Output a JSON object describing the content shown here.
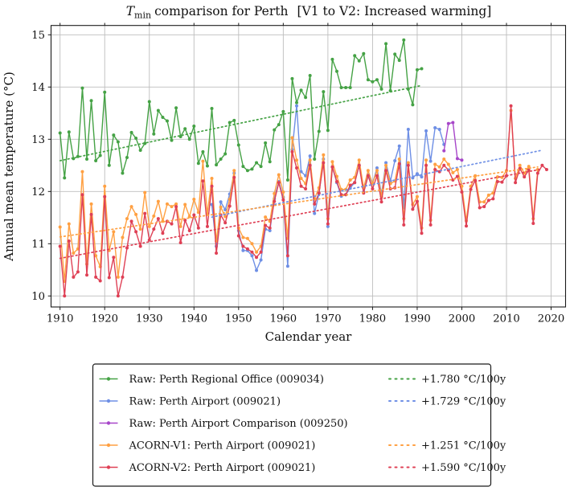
{
  "chart_data": {
    "type": "line",
    "title": "Tmin comparison for Perth  [V1 to V2: Increased warming]",
    "title_parts": {
      "math": "T",
      "sub": "min",
      "rest": "comparison for Perth",
      "bracket": "[V1 to V2: Increased warming]"
    },
    "xlabel": "Calendar year",
    "ylabel": "Annual mean temperature (°C)",
    "xlim": [
      1908,
      2023.3
    ],
    "ylim": [
      9.79,
      15.18
    ],
    "xticks": [
      1910,
      1920,
      1930,
      1940,
      1950,
      1960,
      1970,
      1980,
      1990,
      2000,
      2010,
      2020
    ],
    "yticks": [
      10,
      11,
      12,
      13,
      14,
      15
    ],
    "grid": true,
    "grid_color": "#bdbdbd",
    "legend_position": "below-center",
    "series": [
      {
        "name": "Raw: Perth Regional Office (009034)",
        "color": "#45a245",
        "start_year": 1910,
        "values": [
          13.12,
          12.26,
          13.14,
          12.63,
          12.67,
          13.98,
          12.62,
          13.74,
          12.59,
          12.69,
          13.9,
          12.5,
          13.08,
          12.95,
          12.35,
          12.65,
          13.13,
          13.02,
          12.79,
          12.92,
          13.72,
          13.1,
          13.55,
          13.42,
          13.35,
          12.98,
          13.6,
          13.05,
          13.2,
          13.0,
          13.25,
          12.54,
          12.76,
          12.49,
          13.59,
          12.51,
          12.62,
          12.72,
          13.32,
          13.36,
          12.89,
          12.48,
          12.4,
          12.43,
          12.55,
          12.48,
          12.93,
          12.57,
          13.18,
          13.28,
          13.53,
          12.22,
          14.16,
          13.7,
          13.94,
          13.8,
          14.22,
          12.62,
          13.15,
          13.91,
          13.17,
          14.53,
          14.3,
          13.99,
          13.99,
          13.99,
          14.6,
          14.5,
          14.64,
          14.14,
          14.1,
          14.14,
          13.96,
          14.83,
          13.93,
          14.63,
          14.51,
          14.9,
          13.96,
          13.66,
          14.33,
          14.35
        ]
      },
      {
        "name": "Raw: Perth Airport (009021)",
        "color": "#6e8fe5",
        "start_year": 1944,
        "values": [
          11.75,
          10.95,
          11.8,
          11.65,
          11.95,
          12.35,
          11.25,
          10.87,
          10.87,
          10.77,
          10.49,
          10.69,
          11.28,
          11.25,
          11.86,
          12.19,
          11.89,
          10.57,
          12.8,
          13.64,
          12.38,
          12.3,
          12.68,
          11.58,
          11.96,
          12.62,
          11.33,
          12.47,
          12.17,
          11.91,
          11.94,
          12.07,
          12.17,
          12.5,
          11.99,
          12.32,
          12.15,
          12.45,
          11.95,
          12.55,
          12.2,
          12.59,
          12.87,
          11.69,
          13.19,
          12.26,
          12.34,
          12.28,
          13.16,
          12.58,
          13.22,
          13.19,
          12.9
        ]
      },
      {
        "name": "Raw: Perth Airport Comparison (009250)",
        "color": "#a746c9",
        "start_year": 1996,
        "values": [
          12.78,
          13.3,
          13.32,
          12.63,
          12.6
        ]
      },
      {
        "name": "ACORN-V1: Perth Airport (009021)",
        "color": "#ffa042",
        "start_year": 1910,
        "values": [
          11.32,
          10.28,
          11.38,
          10.82,
          10.9,
          12.38,
          10.61,
          11.76,
          10.77,
          10.56,
          12.1,
          10.87,
          11.23,
          10.36,
          11.12,
          11.48,
          11.71,
          11.56,
          11.28,
          11.98,
          11.33,
          11.53,
          11.81,
          11.43,
          11.76,
          11.71,
          11.76,
          11.33,
          11.75,
          11.52,
          11.85,
          11.6,
          12.58,
          11.57,
          12.25,
          11.05,
          11.7,
          11.52,
          11.85,
          12.4,
          11.3,
          11.12,
          11.1,
          11.0,
          10.84,
          10.95,
          11.51,
          11.43,
          11.96,
          12.32,
          11.99,
          11.1,
          13.03,
          12.6,
          12.25,
          12.15,
          12.6,
          11.86,
          12.07,
          12.7,
          11.48,
          12.57,
          12.29,
          12.04,
          12.04,
          12.22,
          12.27,
          12.6,
          12.07,
          12.4,
          12.15,
          12.4,
          11.9,
          12.5,
          12.15,
          12.2,
          12.62,
          11.48,
          12.55,
          11.75,
          11.9,
          11.3,
          12.6,
          11.45,
          12.52,
          12.47,
          12.62,
          12.52,
          12.36,
          12.42,
          12.1,
          11.44,
          12.1,
          12.3,
          11.8,
          11.8,
          11.93,
          11.97,
          12.28,
          12.27,
          12.4,
          13.55,
          12.25,
          12.5,
          12.35,
          12.48,
          11.48,
          12.42
        ]
      },
      {
        "name": "ACORN-V2: Perth Airport (009021)",
        "color": "#df4055",
        "start_year": 1910,
        "values": [
          10.95,
          10.0,
          11.05,
          10.36,
          10.46,
          11.94,
          10.4,
          11.56,
          10.36,
          10.29,
          11.9,
          10.35,
          10.74,
          10.0,
          10.36,
          10.92,
          11.43,
          11.23,
          10.95,
          11.58,
          11.07,
          11.28,
          11.48,
          11.2,
          11.43,
          11.38,
          11.71,
          11.02,
          11.45,
          11.25,
          11.55,
          11.3,
          12.2,
          11.33,
          12.1,
          10.82,
          11.55,
          11.4,
          11.72,
          12.27,
          11.15,
          10.95,
          10.9,
          10.84,
          10.74,
          10.84,
          11.35,
          11.3,
          11.81,
          12.17,
          11.84,
          10.77,
          12.76,
          12.45,
          12.1,
          12.05,
          12.5,
          11.76,
          11.97,
          12.55,
          11.38,
          12.47,
          12.19,
          11.94,
          11.94,
          12.12,
          12.17,
          12.5,
          11.97,
          12.3,
          12.05,
          12.3,
          11.8,
          12.4,
          12.05,
          12.07,
          12.53,
          11.36,
          12.5,
          11.66,
          11.81,
          11.2,
          12.5,
          11.36,
          12.42,
          12.38,
          12.5,
          12.41,
          12.22,
          12.29,
          11.99,
          11.34,
          12.04,
          12.21,
          11.69,
          11.71,
          11.83,
          11.86,
          12.19,
          12.18,
          12.3,
          13.64,
          12.17,
          12.44,
          12.28,
          12.41,
          11.39,
          12.35,
          12.5,
          12.42
        ]
      }
    ],
    "trends": [
      {
        "label": "+1.780 °C/100y",
        "color": "#45a245",
        "x1": 1910,
        "y1": 12.59,
        "x2": 1991,
        "y2": 14.03,
        "legend_row": 0
      },
      {
        "label": "+1.729 °C/100y",
        "color": "#6e8fe5",
        "x1": 1944,
        "y1": 11.51,
        "x2": 2018,
        "y2": 12.79,
        "legend_row": 1
      },
      {
        "label": "+1.251 °C/100y",
        "color": "#ffa042",
        "x1": 1910,
        "y1": 11.13,
        "x2": 2017,
        "y2": 12.47,
        "legend_row": 3
      },
      {
        "label": "+1.590 °C/100y",
        "color": "#df4055",
        "x1": 1910,
        "y1": 10.72,
        "x2": 2018,
        "y2": 12.43,
        "legend_row": 4
      }
    ]
  }
}
